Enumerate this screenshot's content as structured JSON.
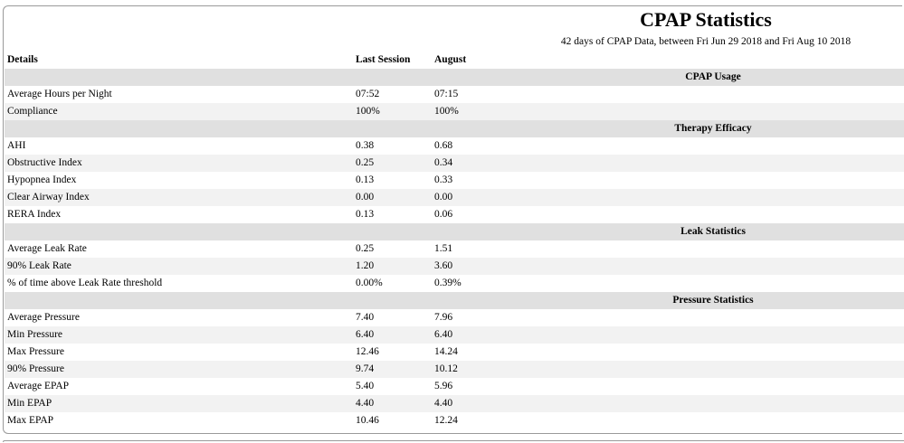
{
  "report": {
    "title": "CPAP Statistics",
    "subtitle": "42 days of CPAP Data, between Fri Jun 29 2018 and Fri Aug 10 2018"
  },
  "table": {
    "headers": {
      "details": "Details",
      "last_session": "Last Session",
      "month": "August"
    },
    "sections": [
      {
        "title": "CPAP Usage",
        "rows": [
          {
            "label": "Average Hours per Night",
            "last": "07:52",
            "month": "07:15"
          },
          {
            "label": "Compliance",
            "last": "100%",
            "month": "100%"
          }
        ]
      },
      {
        "title": "Therapy Efficacy",
        "rows": [
          {
            "label": "AHI",
            "last": "0.38",
            "month": "0.68"
          },
          {
            "label": "Obstructive Index",
            "last": "0.25",
            "month": "0.34"
          },
          {
            "label": "Hypopnea Index",
            "last": "0.13",
            "month": "0.33"
          },
          {
            "label": "Clear Airway Index",
            "last": "0.00",
            "month": "0.00"
          },
          {
            "label": "RERA Index",
            "last": "0.13",
            "month": "0.06"
          }
        ]
      },
      {
        "title": "Leak Statistics",
        "rows": [
          {
            "label": "Average Leak Rate",
            "last": "0.25",
            "month": "1.51"
          },
          {
            "label": "90% Leak Rate",
            "last": "1.20",
            "month": "3.60"
          },
          {
            "label": "% of time above Leak Rate threshold",
            "last": "0.00%",
            "month": "0.39%"
          }
        ]
      },
      {
        "title": "Pressure Statistics",
        "rows": [
          {
            "label": "Average Pressure",
            "last": "7.40",
            "month": "7.96"
          },
          {
            "label": "Min Pressure",
            "last": "6.40",
            "month": "6.40"
          },
          {
            "label": "Max Pressure",
            "last": "12.46",
            "month": "14.24"
          },
          {
            "label": "90% Pressure",
            "last": "9.74",
            "month": "10.12"
          },
          {
            "label": "Average EPAP",
            "last": "5.40",
            "month": "5.96"
          },
          {
            "label": "Min EPAP",
            "last": "4.40",
            "month": "4.40"
          },
          {
            "label": "Max EPAP",
            "last": "10.46",
            "month": "12.24"
          }
        ]
      }
    ]
  },
  "colors": {
    "section_band": "#e0e0e0",
    "row_stripe": "#f2f2f2",
    "frame_border": "#9a9a9a"
  }
}
